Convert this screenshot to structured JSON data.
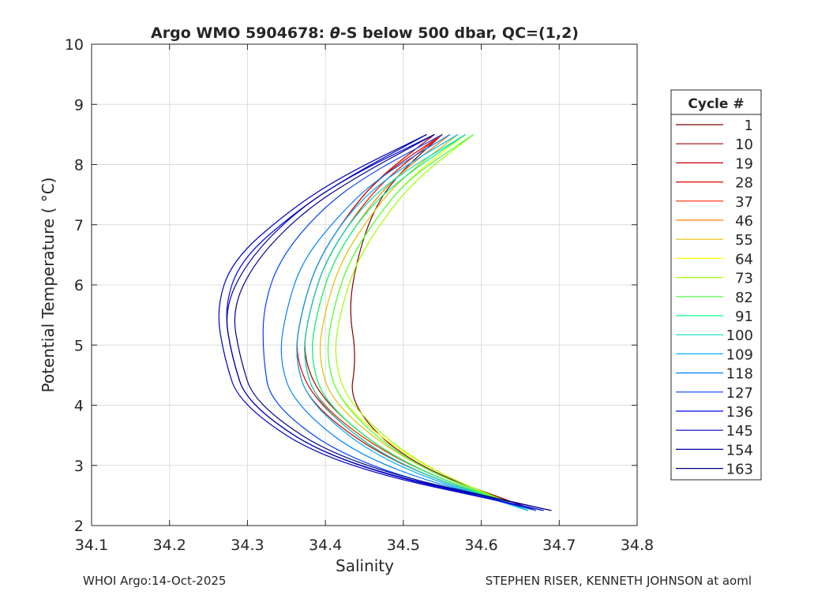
{
  "chart_data": {
    "type": "line",
    "title": "Argo WMO 5904678: θ-S below 500 dbar,  QC=(1,2)",
    "title_prefix": "Argo WMO 5904678: ",
    "title_theta": "θ",
    "title_suffix": "-S below 500 dbar,  QC=(1,2)",
    "xlabel": "Salinity",
    "ylabel": "Potential Temperature ( °C)",
    "xlim": [
      34.1,
      34.8
    ],
    "ylim": [
      2,
      10
    ],
    "xticks": [
      34.1,
      34.2,
      34.3,
      34.4,
      34.5,
      34.6,
      34.7,
      34.8
    ],
    "yticks": [
      2,
      3,
      4,
      5,
      6,
      7,
      8,
      9,
      10
    ],
    "xtick_labels": [
      "34.1",
      "34.2",
      "34.3",
      "34.4",
      "34.5",
      "34.6",
      "34.7",
      "34.8"
    ],
    "ytick_labels": [
      "2",
      "3",
      "4",
      "5",
      "6",
      "7",
      "8",
      "9",
      "10"
    ],
    "grid": true,
    "legend_position": "right",
    "legend_title": "Cycle #",
    "series": [
      {
        "name": "1",
        "color": "#800000",
        "theta": [
          2.25,
          3.0,
          4.0,
          4.8,
          5.6,
          6.4,
          7.2,
          7.8,
          8.5
        ],
        "salinity": [
          34.67,
          34.51,
          34.43,
          34.44,
          34.43,
          34.44,
          34.46,
          34.49,
          34.55
        ]
      },
      {
        "name": "10",
        "color": "#a00000",
        "theta": [
          2.25,
          3.0,
          4.0,
          4.8,
          5.6,
          6.4,
          7.2,
          7.8,
          8.5
        ],
        "salinity": [
          34.66,
          34.5,
          34.4,
          34.37,
          34.38,
          34.4,
          34.44,
          34.48,
          34.55
        ]
      },
      {
        "name": "19",
        "color": "#c00000",
        "theta": [
          2.25,
          3.0,
          4.0,
          4.8,
          5.6,
          6.4,
          7.2,
          7.8,
          8.5
        ],
        "salinity": [
          34.66,
          34.49,
          34.38,
          34.36,
          34.37,
          34.39,
          34.43,
          34.47,
          34.54
        ]
      },
      {
        "name": "28",
        "color": "#e00000",
        "theta": [
          2.25,
          3.0,
          4.0,
          4.8,
          5.6,
          6.4,
          7.2,
          7.8,
          8.5
        ],
        "salinity": [
          34.66,
          34.49,
          34.39,
          34.36,
          34.37,
          34.39,
          34.43,
          34.47,
          34.55
        ]
      },
      {
        "name": "37",
        "color": "#ff2000",
        "theta": [
          2.25,
          3.0,
          4.0,
          4.8,
          5.6,
          6.4,
          7.2,
          7.8,
          8.5
        ],
        "salinity": [
          34.66,
          34.5,
          34.39,
          34.37,
          34.38,
          34.4,
          34.44,
          34.48,
          34.55
        ]
      },
      {
        "name": "46",
        "color": "#ff8000",
        "theta": [
          2.25,
          3.0,
          4.0,
          4.8,
          5.6,
          6.4,
          7.2,
          7.8,
          8.5
        ],
        "salinity": [
          34.66,
          34.5,
          34.4,
          34.38,
          34.39,
          34.41,
          34.45,
          34.49,
          34.56
        ]
      },
      {
        "name": "55",
        "color": "#e0c000",
        "theta": [
          2.25,
          3.0,
          4.0,
          4.8,
          5.6,
          6.4,
          7.2,
          7.8,
          8.5
        ],
        "salinity": [
          34.66,
          34.51,
          34.41,
          34.39,
          34.4,
          34.42,
          34.46,
          34.5,
          34.57
        ]
      },
      {
        "name": "64",
        "color": "#ffff00",
        "theta": [
          2.25,
          3.0,
          4.0,
          4.8,
          5.6,
          6.4,
          7.2,
          7.8,
          8.5
        ],
        "salinity": [
          34.66,
          34.52,
          34.42,
          34.4,
          34.41,
          34.43,
          34.47,
          34.51,
          34.58
        ]
      },
      {
        "name": "73",
        "color": "#a0ff00",
        "theta": [
          2.25,
          3.0,
          4.0,
          4.8,
          5.6,
          6.4,
          7.2,
          7.8,
          8.5
        ],
        "salinity": [
          34.66,
          34.52,
          34.43,
          34.41,
          34.42,
          34.44,
          34.48,
          34.52,
          34.59
        ]
      },
      {
        "name": "82",
        "color": "#40ff40",
        "theta": [
          2.25,
          3.0,
          4.0,
          4.8,
          5.6,
          6.4,
          7.2,
          7.8,
          8.5
        ],
        "salinity": [
          34.66,
          34.51,
          34.42,
          34.4,
          34.41,
          34.43,
          34.47,
          34.51,
          34.59
        ]
      },
      {
        "name": "91",
        "color": "#00ff80",
        "theta": [
          2.25,
          3.0,
          4.0,
          4.8,
          5.6,
          6.4,
          7.2,
          7.8,
          8.5
        ],
        "salinity": [
          34.66,
          34.5,
          34.4,
          34.38,
          34.39,
          34.41,
          34.45,
          34.5,
          34.58
        ]
      },
      {
        "name": "100",
        "color": "#00e0c0",
        "theta": [
          2.25,
          3.0,
          4.0,
          4.8,
          5.6,
          6.4,
          7.2,
          7.8,
          8.5
        ],
        "salinity": [
          34.66,
          34.49,
          34.39,
          34.37,
          34.38,
          34.4,
          34.44,
          34.49,
          34.58
        ]
      },
      {
        "name": "109",
        "color": "#00b0ff",
        "theta": [
          2.25,
          3.0,
          4.0,
          4.8,
          5.6,
          6.4,
          7.2,
          7.8,
          8.5
        ],
        "salinity": [
          34.66,
          34.48,
          34.38,
          34.36,
          34.37,
          34.39,
          34.43,
          34.48,
          34.57
        ]
      },
      {
        "name": "118",
        "color": "#0080ff",
        "theta": [
          2.25,
          3.0,
          4.0,
          4.8,
          5.6,
          6.4,
          7.2,
          7.8,
          8.5
        ],
        "salinity": [
          34.67,
          34.46,
          34.36,
          34.34,
          34.35,
          34.37,
          34.42,
          34.47,
          34.56
        ]
      },
      {
        "name": "127",
        "color": "#0040ff",
        "theta": [
          2.25,
          3.0,
          4.0,
          4.8,
          5.6,
          6.4,
          7.2,
          7.8,
          8.5
        ],
        "salinity": [
          34.67,
          34.44,
          34.33,
          34.32,
          34.32,
          34.34,
          34.39,
          34.45,
          34.55
        ]
      },
      {
        "name": "136",
        "color": "#0000ff",
        "theta": [
          2.25,
          3.0,
          4.0,
          4.8,
          5.6,
          6.4,
          7.2,
          7.8,
          8.5
        ],
        "salinity": [
          34.68,
          34.42,
          34.3,
          34.28,
          34.27,
          34.29,
          34.36,
          34.43,
          34.54
        ]
      },
      {
        "name": "145",
        "color": "#0000c8",
        "theta": [
          2.25,
          3.0,
          4.0,
          4.8,
          5.6,
          6.4,
          7.2,
          7.8,
          8.5
        ],
        "salinity": [
          34.68,
          34.41,
          34.29,
          34.27,
          34.26,
          34.28,
          34.35,
          34.42,
          34.53
        ]
      },
      {
        "name": "154",
        "color": "#0000a0",
        "theta": [
          2.25,
          3.0,
          4.0,
          4.8,
          5.6,
          6.4,
          7.2,
          7.8,
          8.5
        ],
        "salinity": [
          34.69,
          34.42,
          34.3,
          34.28,
          34.27,
          34.3,
          34.36,
          34.43,
          34.53
        ]
      },
      {
        "name": "163",
        "color": "#000080",
        "theta": [
          2.25,
          3.0,
          4.0,
          4.8,
          5.6,
          6.4,
          7.2,
          7.8,
          8.5
        ],
        "salinity": [
          34.69,
          34.43,
          34.31,
          34.29,
          34.28,
          34.31,
          34.37,
          34.44,
          34.54
        ]
      }
    ],
    "annotations": {
      "left_footer": "WHOI Argo:14-Oct-2025",
      "right_footer": "STEPHEN RISER, KENNETH JOHNSON at aoml"
    }
  }
}
